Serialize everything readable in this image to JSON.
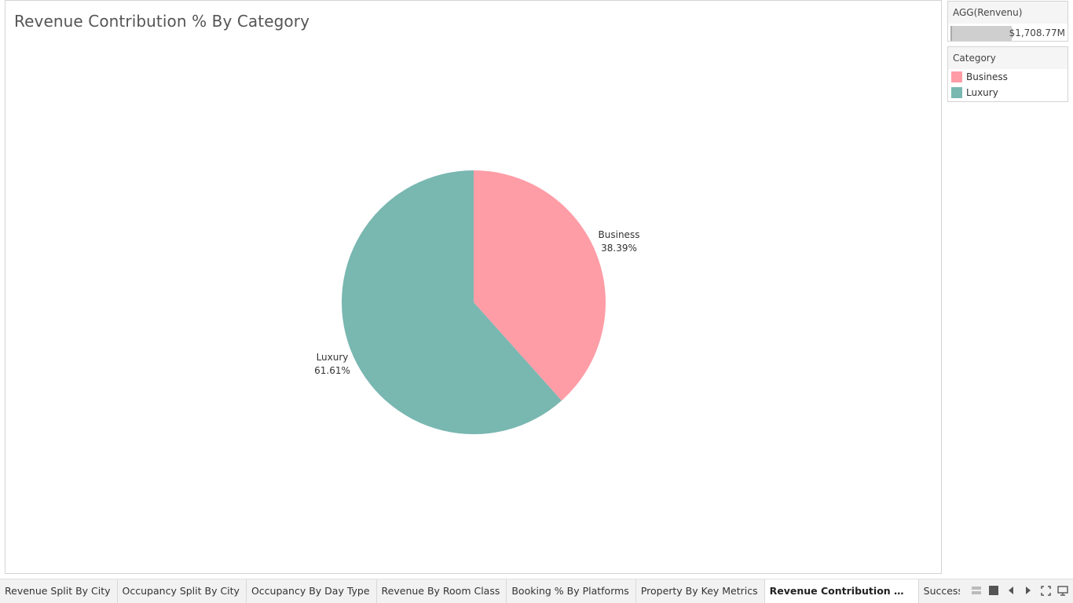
{
  "worksheet": {
    "title": "Revenue Contribution % By Category"
  },
  "chart_data": {
    "type": "pie",
    "title": "Revenue Contribution % By Category",
    "slices": [
      {
        "label": "Business",
        "percent_label": "38.39%",
        "value": 38.39,
        "color": "#ff9da7"
      },
      {
        "label": "Luxury",
        "percent_label": "61.61%",
        "value": 61.61,
        "color": "#79b7b1"
      }
    ]
  },
  "agg_card": {
    "title": "AGG(Renvenu)",
    "value": "$1,708.77M"
  },
  "legend": {
    "title": "Category",
    "items": [
      {
        "label": "Business",
        "color": "#ff9da7"
      },
      {
        "label": "Luxury",
        "color": "#79b7b1"
      }
    ]
  },
  "tabs": [
    {
      "label": "Revenue Split By City"
    },
    {
      "label": "Occupancy Split By City"
    },
    {
      "label": "Occupancy By Day Type"
    },
    {
      "label": "Revenue By Room Class"
    },
    {
      "label": "Booking % By Platforms"
    },
    {
      "label": "Property By Key Metrics"
    },
    {
      "label": "Revenue Contribution % By Ca..."
    },
    {
      "label": "Successful Booking By"
    }
  ],
  "active_tab_index": 6,
  "tab_controls": [
    "grid-view-icon",
    "single-sheet-icon",
    "prev-arrow-icon",
    "next-arrow-icon",
    "fullscreen-icon",
    "presentation-icon"
  ]
}
